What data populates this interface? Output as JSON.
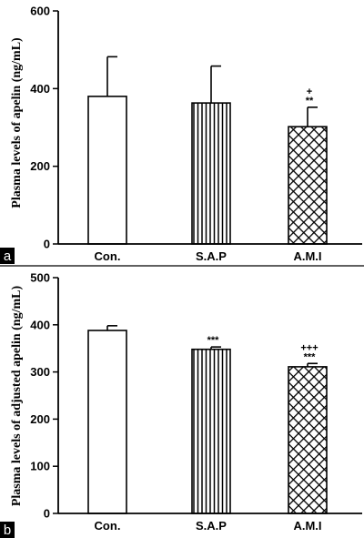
{
  "chart_data": [
    {
      "panel": "a",
      "type": "bar",
      "categories": [
        "Con.",
        "S.A.P",
        "A.M.I"
      ],
      "values": [
        380,
        363,
        302
      ],
      "error_upper": [
        482,
        458,
        352
      ],
      "patterns": [
        "white",
        "vertical-stripes",
        "crosshatch"
      ],
      "annotations": [
        [],
        [],
        [
          "+",
          "**"
        ]
      ],
      "title": "",
      "xlabel": "",
      "ylabel": "Plasma levels of apelin (ng/mL)",
      "ylim": [
        0,
        600
      ],
      "yticks": [
        0,
        200,
        400,
        600
      ],
      "grid": false
    },
    {
      "panel": "b",
      "type": "bar",
      "categories": [
        "Con.",
        "S.A.P",
        "A.M.I"
      ],
      "values": [
        388,
        348,
        311
      ],
      "error_upper": [
        398,
        353,
        318
      ],
      "patterns": [
        "white",
        "vertical-stripes",
        "crosshatch"
      ],
      "annotations": [
        [],
        [
          "***"
        ],
        [
          "+++",
          "***"
        ]
      ],
      "title": "",
      "xlabel": "",
      "ylabel": "Plasma levels of adjusted apelin (ng/mL)",
      "ylim": [
        0,
        500
      ],
      "yticks": [
        0,
        100,
        200,
        300,
        400,
        500
      ],
      "grid": false
    }
  ]
}
